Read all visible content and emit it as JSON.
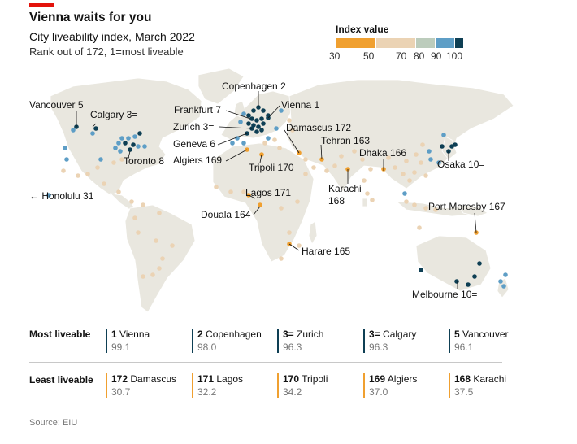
{
  "header": {
    "title": "Vienna waits for you",
    "subtitle": "City liveability index, March 2022",
    "description": "Rank out of 172, 1=most liveable"
  },
  "legend": {
    "title": "Index value",
    "ticks": [
      "30",
      "50",
      "70",
      "80",
      "90",
      "100"
    ],
    "bins": [
      {
        "from": 30,
        "to": 50,
        "color": "#f0a030"
      },
      {
        "from": 50,
        "to": 70,
        "color": "#ebd3b4"
      },
      {
        "from": 70,
        "to": 80,
        "color": "#bcccbc"
      },
      {
        "from": 80,
        "to": 90,
        "color": "#5e9ec6"
      },
      {
        "from": 90,
        "to": 100,
        "color": "#0e3f54"
      }
    ]
  },
  "map_labels": {
    "copenhagen": "Copenhagen 2",
    "vienna": "Vienna 1",
    "vancouver": "Vancouver 5",
    "calgary": "Calgary 3=",
    "frankfurt": "Frankfurt 7",
    "zurich": "Zurich 3=",
    "geneva": "Geneva 6",
    "algiers": "Algiers 169",
    "damascus": "Damascus 172",
    "tehran": "Tehran 163",
    "dhaka": "Dhaka 166",
    "osaka": "Osaka 10=",
    "toronto": "Toronto 8",
    "tripoli": "Tripoli 170",
    "karachi_name": "Karachi",
    "karachi_rank": "168",
    "honolulu": "← Honolulu 31",
    "lagos": "Lagos 171",
    "douala": "Douala 164",
    "port_moresby": "Port Moresby 167",
    "harare": "Harare 165",
    "melbourne": "Melbourne 10="
  },
  "table": {
    "most_label": "Most liveable",
    "least_label": "Least liveable",
    "most": [
      {
        "rank": "1",
        "city": "Vienna",
        "value": "99.1"
      },
      {
        "rank": "2",
        "city": "Copenhagen",
        "value": "98.0"
      },
      {
        "rank": "3=",
        "city": "Zurich",
        "value": "96.3"
      },
      {
        "rank": "3=",
        "city": "Calgary",
        "value": "96.3"
      },
      {
        "rank": "5",
        "city": "Vancouver",
        "value": "96.1"
      }
    ],
    "least": [
      {
        "rank": "172",
        "city": "Damascus",
        "value": "30.7"
      },
      {
        "rank": "171",
        "city": "Lagos",
        "value": "32.2"
      },
      {
        "rank": "170",
        "city": "Tripoli",
        "value": "34.2"
      },
      {
        "rank": "169",
        "city": "Algiers",
        "value": "37.0"
      },
      {
        "rank": "168",
        "city": "Karachi",
        "value": "37.5"
      }
    ]
  },
  "colors": {
    "dark_blue": "#0e3f54",
    "mid_blue": "#5e9ec6",
    "green_grey": "#bcccbc",
    "beige": "#ebd3b4",
    "orange": "#f0a030",
    "land": "#e9e7df",
    "accent_red": "#e3120b"
  },
  "source": "Source: EIU"
}
